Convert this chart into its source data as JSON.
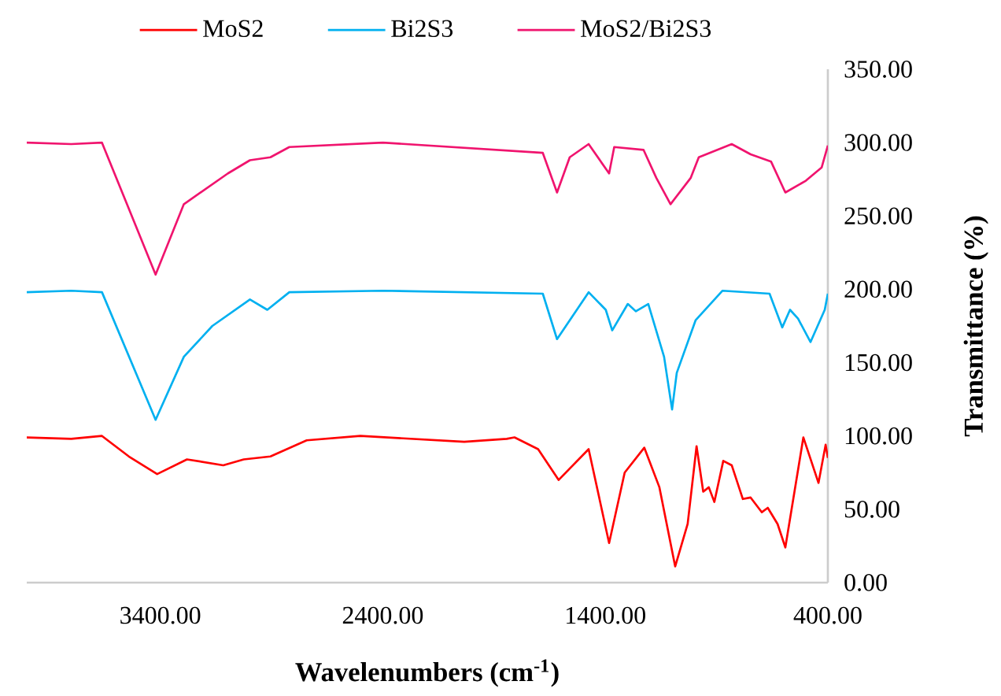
{
  "chart_data": {
    "type": "line",
    "xlabel": "Wavelenumbers (cm$^{-1}$)",
    "ylabel": "Transmittance (%)",
    "xlim": [
      4000,
      400
    ],
    "ylim": [
      0,
      350
    ],
    "xticks": [
      {
        "value": 3400,
        "label": "3400.00"
      },
      {
        "value": 2400,
        "label": "2400.00"
      },
      {
        "value": 1400,
        "label": "1400.00"
      },
      {
        "value": 400,
        "label": "400.00"
      }
    ],
    "yticks": [
      {
        "value": 0,
        "label": "0.00"
      },
      {
        "value": 50,
        "label": "50.00"
      },
      {
        "value": 100,
        "label": "100.00"
      },
      {
        "value": 150,
        "label": "150.00"
      },
      {
        "value": 200,
        "label": "200.00"
      },
      {
        "value": 250,
        "label": "250.00"
      },
      {
        "value": 300,
        "label": "300.00"
      },
      {
        "value": 350,
        "label": "350.00"
      }
    ],
    "legend": "top",
    "grid": false,
    "marker": "none",
    "line_style": "solid",
    "series": [
      {
        "name": "MoS2",
        "color": "#ff0000",
        "x": [
          4000,
          3800,
          3662,
          3541,
          3414,
          3280,
          3117,
          3025,
          2905,
          2742,
          2501,
          2034,
          1843,
          1808,
          1702,
          1610,
          1475,
          1383,
          1313,
          1225,
          1157,
          1086,
          1030,
          990,
          960,
          935,
          910,
          870,
          832,
          782,
          747,
          697,
          670,
          626,
          591,
          510,
          442,
          410,
          400
        ],
        "values": [
          99,
          98,
          100,
          86,
          74,
          84,
          80,
          84,
          86,
          97,
          100,
          96,
          98,
          99,
          91,
          70,
          91,
          27,
          75,
          92,
          65,
          11,
          40,
          93,
          62,
          65,
          55,
          83,
          80,
          57,
          58,
          48,
          51,
          40,
          24,
          99,
          68,
          94,
          85
        ]
      },
      {
        "name": "Bi2S3",
        "color": "#00b0f0",
        "x": [
          4000,
          3800,
          3662,
          3421,
          3294,
          3166,
          2997,
          2919,
          2820,
          2400,
          1681,
          1617,
          1475,
          1398,
          1369,
          1299,
          1263,
          1207,
          1136,
          1100,
          1079,
          994,
          874,
          662,
          605,
          570,
          534,
          478,
          414,
          400
        ],
        "values": [
          198,
          199,
          198,
          111,
          154,
          175,
          193,
          186,
          198,
          199,
          197,
          166,
          198,
          186,
          172,
          190,
          185,
          190,
          154,
          118,
          143,
          179,
          199,
          197,
          174,
          186,
          180,
          164,
          186,
          197
        ]
      },
      {
        "name": "MoS2/Bi2S3",
        "color": "#f0146e",
        "x": [
          4000,
          3800,
          3662,
          3421,
          3294,
          3096,
          2997,
          2905,
          2820,
          2400,
          1681,
          1617,
          1560,
          1475,
          1383,
          1360,
          1228,
          1171,
          1107,
          1016,
          980,
          832,
          747,
          655,
          591,
          499,
          428,
          400
        ],
        "values": [
          300,
          299,
          300,
          210,
          258,
          279,
          288,
          290,
          297,
          300,
          293,
          266,
          290,
          299,
          279,
          297,
          295,
          276,
          258,
          276,
          290,
          299,
          292,
          287,
          266,
          274,
          283,
          298
        ]
      }
    ]
  }
}
